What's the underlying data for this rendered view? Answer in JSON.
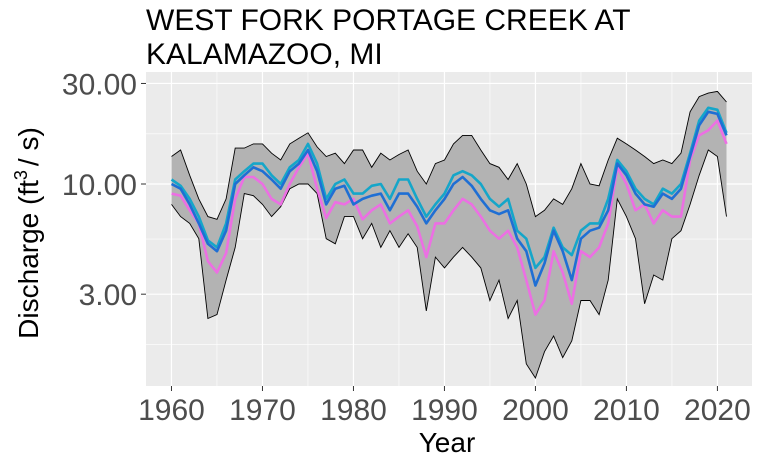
{
  "chart_data": {
    "type": "line",
    "title_lines": [
      "WEST FORK PORTAGE CREEK AT",
      "KALAMAZOO, MI"
    ],
    "xlabel": "Year",
    "ylabel_main": "Discharge (ft",
    "ylabel_sup": "3",
    "ylabel_tail": "/ s)",
    "y_scale": "log",
    "xlim": [
      1960,
      2021
    ],
    "ylim": [
      1.1,
      34
    ],
    "x_ticks": [
      1960,
      1970,
      1980,
      1990,
      2000,
      2010,
      2020
    ],
    "y_ticks": [
      3,
      10,
      30
    ],
    "y_tick_labels": [
      "3.00",
      "10.00",
      "30.00"
    ],
    "y_minor_ticks": [
      1.73,
      5.48,
      17.3
    ],
    "grid": true,
    "legend": "none",
    "x": [
      1960,
      1961,
      1962,
      1963,
      1964,
      1965,
      1966,
      1967,
      1968,
      1969,
      1970,
      1971,
      1972,
      1973,
      1974,
      1975,
      1976,
      1977,
      1978,
      1979,
      1980,
      1981,
      1982,
      1983,
      1984,
      1985,
      1986,
      1987,
      1988,
      1989,
      1990,
      1991,
      1992,
      1993,
      1994,
      1995,
      1996,
      1997,
      1998,
      1999,
      2000,
      2001,
      2002,
      2003,
      2004,
      2005,
      2006,
      2007,
      2008,
      2009,
      2010,
      2011,
      2012,
      2013,
      2014,
      2015,
      2016,
      2017,
      2018,
      2019,
      2020,
      2021
    ],
    "band": {
      "name": "range",
      "color": "#b3b3b3",
      "upper": [
        13.5,
        14.5,
        11.0,
        8.5,
        7.0,
        6.8,
        8.5,
        14.8,
        14.8,
        15.5,
        15.5,
        14.0,
        13.0,
        15.5,
        16.5,
        17.5,
        15.0,
        13.5,
        14.0,
        12.5,
        14.5,
        14.5,
        12.0,
        14.0,
        13.0,
        13.8,
        14.5,
        11.5,
        10.0,
        12.5,
        13.0,
        15.5,
        17.0,
        17.0,
        14.5,
        12.5,
        12.0,
        10.5,
        12.5,
        10.0,
        7.0,
        7.5,
        8.5,
        8.0,
        9.5,
        12.5,
        10.0,
        9.8,
        13.0,
        16.5,
        15.5,
        14.5,
        13.5,
        12.5,
        13.0,
        12.5,
        14.0,
        22.0,
        26.0,
        27.0,
        27.5,
        24.5
      ],
      "lower": [
        8.0,
        7.0,
        6.5,
        5.5,
        2.3,
        2.4,
        3.5,
        5.0,
        9.0,
        8.8,
        8.0,
        7.0,
        7.8,
        9.5,
        10.0,
        10.0,
        9.0,
        5.5,
        5.2,
        7.0,
        7.0,
        5.5,
        6.5,
        5.0,
        6.0,
        5.0,
        5.8,
        5.0,
        2.5,
        4.5,
        4.0,
        4.5,
        5.0,
        4.5,
        4.0,
        2.8,
        3.5,
        2.3,
        2.8,
        1.4,
        1.2,
        1.6,
        1.9,
        1.5,
        1.8,
        2.8,
        2.8,
        2.4,
        3.5,
        8.5,
        7.0,
        5.5,
        2.7,
        3.7,
        3.5,
        5.5,
        6.0,
        8.0,
        11.0,
        14.5,
        13.5,
        7.0
      ]
    },
    "series": [
      {
        "color": "#ec6fe3",
        "values": [
          9.0,
          8.8,
          7.5,
          6.5,
          4.3,
          3.8,
          4.7,
          8.5,
          10.8,
          10.8,
          10.0,
          8.5,
          8.0,
          10.0,
          12.0,
          14.0,
          9.5,
          6.9,
          8.2,
          8.0,
          8.5,
          6.8,
          7.5,
          8.0,
          6.5,
          7.0,
          7.5,
          6.3,
          4.5,
          6.5,
          6.5,
          7.5,
          8.5,
          8.0,
          7.0,
          6.0,
          5.5,
          6.0,
          5.0,
          3.5,
          2.4,
          2.8,
          4.8,
          3.8,
          2.7,
          4.8,
          4.5,
          5.0,
          6.5,
          12.0,
          10.0,
          7.5,
          8.0,
          6.5,
          7.5,
          7.0,
          7.0,
          13.0,
          17.0,
          18.0,
          20.0,
          15.5
        ]
      },
      {
        "color": "#15a6c9",
        "values": [
          10.5,
          9.8,
          8.5,
          7.0,
          5.4,
          5.0,
          6.5,
          10.5,
          11.5,
          12.5,
          12.5,
          11.0,
          10.0,
          12.0,
          13.0,
          15.5,
          12.5,
          8.5,
          10.0,
          10.5,
          9.0,
          9.0,
          9.8,
          10.0,
          8.5,
          10.5,
          10.5,
          8.5,
          7.0,
          8.0,
          9.0,
          11.0,
          11.5,
          11.0,
          10.0,
          8.5,
          7.8,
          8.5,
          6.0,
          5.5,
          4.0,
          4.5,
          6.2,
          5.0,
          4.6,
          6.0,
          6.5,
          6.5,
          8.5,
          13.0,
          11.5,
          9.5,
          8.5,
          8.0,
          9.5,
          9.0,
          10.0,
          14.0,
          20.0,
          23.0,
          22.5,
          17.5
        ]
      },
      {
        "color": "#1f6fd4",
        "values": [
          10.0,
          9.5,
          8.0,
          6.5,
          5.2,
          4.8,
          6.0,
          10.0,
          11.0,
          12.0,
          11.5,
          10.5,
          9.5,
          11.5,
          12.5,
          14.5,
          11.5,
          8.0,
          9.5,
          9.8,
          8.0,
          8.5,
          8.8,
          9.0,
          7.5,
          9.0,
          9.0,
          7.8,
          6.5,
          7.5,
          8.5,
          10.0,
          10.8,
          9.8,
          8.5,
          7.5,
          7.2,
          7.5,
          5.5,
          4.8,
          3.3,
          4.2,
          6.0,
          4.8,
          3.5,
          5.5,
          6.0,
          6.2,
          7.5,
          12.5,
          11.0,
          9.0,
          8.0,
          7.8,
          9.0,
          8.5,
          9.5,
          13.5,
          19.0,
          22.0,
          21.5,
          17.0
        ]
      }
    ]
  }
}
